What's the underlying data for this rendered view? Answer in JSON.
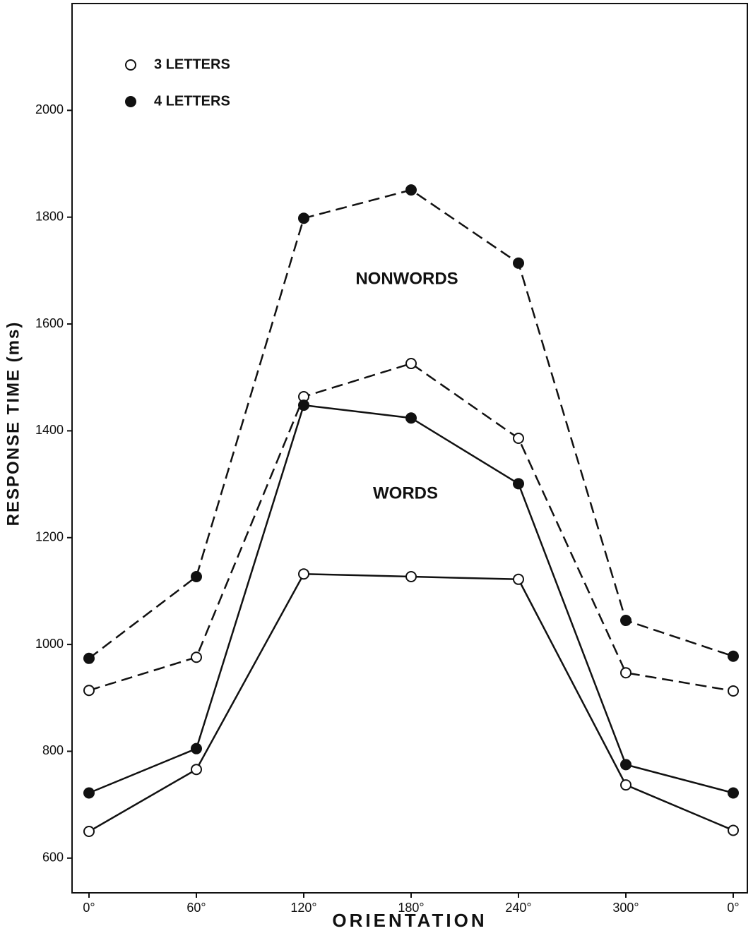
{
  "chart_data": {
    "type": "line",
    "x_label": "ORIENTATION",
    "y_label": "RESPONSE TIME (ms)",
    "categories": [
      "0°",
      "60°",
      "120°",
      "180°",
      "240°",
      "300°",
      "0°"
    ],
    "ylim": [
      535,
      2200
    ],
    "yticks": [
      600,
      800,
      1000,
      1200,
      1400,
      1600,
      1800,
      2000
    ],
    "series": [
      {
        "marker": "filled",
        "dashed": true,
        "color": "#111111",
        "values": [
          974,
          1127,
          1798,
          1851,
          1714,
          1045,
          978
        ]
      },
      {
        "marker": "open",
        "dashed": true,
        "color": "#111111",
        "values": [
          914,
          976,
          1464,
          1526,
          1386,
          947,
          913
        ]
      },
      {
        "marker": "filled",
        "dashed": false,
        "color": "#111111",
        "values": [
          722,
          805,
          1448,
          1424,
          1301,
          775,
          722
        ]
      },
      {
        "marker": "open",
        "dashed": false,
        "color": "#111111",
        "values": [
          650,
          766,
          1132,
          1127,
          1122,
          737,
          652
        ]
      }
    ],
    "legend": [
      {
        "label": "3 LETTERS",
        "marker": "open"
      },
      {
        "label": "4 LETTERS",
        "marker": "filled"
      }
    ],
    "annotations": [
      "NONWORDS",
      "WORDS"
    ]
  }
}
